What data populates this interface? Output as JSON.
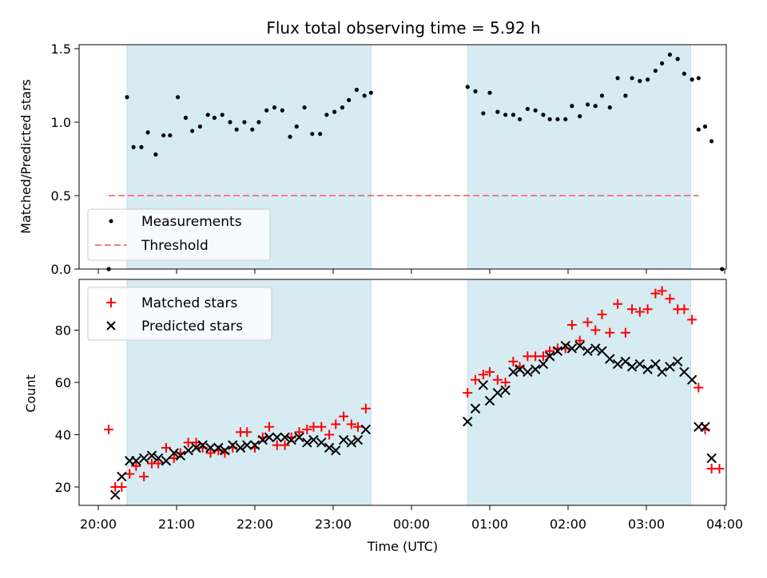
{
  "figure": {
    "title": "Flux total observing time = 5.92 h",
    "xlabel": "Time (UTC)",
    "x_unit_hours_from": "20:00"
  },
  "chart_data": [
    {
      "type": "scatter",
      "ylabel": "Matched/Predicted stars",
      "ylim": [
        0,
        1.55
      ],
      "xlim": [
        "19:45",
        "04:00"
      ],
      "yticks": [
        0.0,
        0.5,
        1.0,
        1.5
      ],
      "ytick_labels": [
        "0.0",
        "0.5",
        "1.0",
        "1.5"
      ],
      "grid": false,
      "legend": "lower-left",
      "shaded_spans": [
        [
          "20:22",
          "23:29"
        ],
        [
          "00:43",
          "03:34"
        ]
      ],
      "threshold": {
        "name": "Threshold",
        "value": 0.5,
        "x_range": [
          "20:08",
          "03:40"
        ],
        "color": "#f08080"
      },
      "series": [
        {
          "name": "Measurements",
          "color": "#000000",
          "x": [
            "20:08",
            "20:22",
            "20:27",
            "20:33",
            "20:38",
            "20:44",
            "20:50",
            "20:55",
            "21:01",
            "21:07",
            "21:12",
            "21:18",
            "21:24",
            "21:29",
            "21:35",
            "21:41",
            "21:46",
            "21:52",
            "21:58",
            "22:03",
            "22:09",
            "22:15",
            "22:21",
            "22:27",
            "22:32",
            "22:38",
            "22:44",
            "22:50",
            "22:55",
            "23:01",
            "23:07",
            "23:12",
            "23:18",
            "23:24",
            "23:29",
            "00:43",
            "00:49",
            "00:55",
            "01:00",
            "01:06",
            "01:12",
            "01:18",
            "01:23",
            "01:29",
            "01:35",
            "01:41",
            "01:46",
            "01:52",
            "01:58",
            "02:03",
            "02:09",
            "02:15",
            "02:21",
            "02:26",
            "02:32",
            "02:38",
            "02:44",
            "02:49",
            "02:55",
            "03:01",
            "03:07",
            "03:12",
            "03:18",
            "03:24",
            "03:29",
            "03:35",
            "03:40"
          ],
          "y": [
            0.0,
            1.17,
            0.83,
            0.83,
            0.93,
            0.78,
            0.91,
            0.91,
            1.17,
            1.03,
            0.94,
            0.97,
            1.05,
            1.03,
            1.05,
            1.0,
            0.95,
            1.0,
            0.95,
            1.0,
            1.08,
            1.1,
            1.08,
            0.9,
            0.97,
            1.1,
            0.92,
            0.92,
            1.05,
            1.07,
            1.1,
            1.15,
            1.22,
            1.18,
            1.2,
            1.24,
            1.21,
            1.06,
            1.2,
            1.07,
            1.05,
            1.05,
            1.02,
            1.09,
            1.08,
            1.05,
            1.02,
            1.02,
            1.02,
            1.11,
            1.04,
            1.12,
            1.11,
            1.18,
            1.1,
            1.3,
            1.18,
            1.3,
            1.28,
            1.29,
            1.35,
            1.4,
            1.46,
            1.43,
            1.33,
            1.29,
            1.3
          ]
        }
      ]
    },
    {
      "type": "scatter",
      "ylabel": "Count",
      "ylim": [
        13,
        98
      ],
      "xlim": [
        "19:45",
        "04:00"
      ],
      "yticks": [
        20,
        40,
        60,
        80
      ],
      "ytick_labels": [
        "20",
        "40",
        "60",
        "80"
      ],
      "xtick_labels": [
        "20:00",
        "21:00",
        "22:00",
        "23:00",
        "00:00",
        "01:00",
        "02:00",
        "03:00",
        "04:00"
      ],
      "grid": false,
      "legend": "top-left",
      "shaded_spans": [
        [
          "20:22",
          "23:29"
        ],
        [
          "00:43",
          "03:34"
        ]
      ],
      "series": [
        {
          "name": "Matched stars",
          "marker": "plus",
          "color": "#ff0000",
          "x": [
            "20:08",
            "20:13",
            "20:18",
            "20:24",
            "20:29",
            "20:35",
            "20:41",
            "20:46",
            "20:52",
            "20:58",
            "21:03",
            "21:09",
            "21:15",
            "21:20",
            "21:26",
            "21:32",
            "21:37",
            "21:43",
            "21:49",
            "21:54",
            "22:00",
            "22:06",
            "22:11",
            "22:17",
            "22:23",
            "22:28",
            "22:34",
            "22:40",
            "22:45",
            "22:51",
            "22:57",
            "23:02",
            "23:08",
            "23:14",
            "23:19",
            "23:25",
            "00:43",
            "00:49",
            "00:55",
            "01:00",
            "01:06",
            "01:12",
            "01:18",
            "01:23",
            "01:29",
            "01:35",
            "01:41",
            "01:46",
            "01:52",
            "01:58",
            "02:03",
            "02:09",
            "02:15",
            "02:21",
            "02:26",
            "02:32",
            "02:38",
            "02:44",
            "02:49",
            "02:55",
            "03:01",
            "03:07",
            "03:12",
            "03:18",
            "03:24",
            "03:29",
            "03:35",
            "03:40"
          ],
          "y": [
            42,
            20,
            20,
            25,
            28,
            24,
            29,
            29,
            35,
            31,
            33,
            37,
            37,
            35,
            33,
            34,
            33,
            35,
            41,
            41,
            35,
            39,
            43,
            36,
            36,
            39,
            41,
            42,
            43,
            43,
            40,
            44,
            47,
            44,
            43,
            50,
            56,
            61,
            63,
            64,
            61,
            60,
            68,
            66,
            70,
            70,
            70,
            72,
            73,
            73,
            82,
            76,
            83,
            80,
            86,
            79,
            90,
            79,
            88,
            87,
            88,
            94,
            95,
            92,
            88,
            88,
            84,
            58
          ]
        },
        {
          "name": "Predicted stars",
          "marker": "x",
          "color": "#000000",
          "x": [
            "20:13",
            "20:18",
            "20:24",
            "20:29",
            "20:35",
            "20:41",
            "20:46",
            "20:52",
            "20:58",
            "21:03",
            "21:09",
            "21:15",
            "21:20",
            "21:26",
            "21:32",
            "21:37",
            "21:43",
            "21:49",
            "21:54",
            "22:00",
            "22:06",
            "22:11",
            "22:17",
            "22:23",
            "22:28",
            "22:34",
            "22:40",
            "22:45",
            "22:51",
            "22:57",
            "23:02",
            "23:08",
            "23:14",
            "23:19",
            "23:25",
            "00:43",
            "00:49",
            "00:55",
            "01:00",
            "01:06",
            "01:12",
            "01:18",
            "01:23",
            "01:29",
            "01:35",
            "01:41",
            "01:46",
            "01:52",
            "01:58",
            "02:03",
            "02:09",
            "02:15",
            "02:21",
            "02:26",
            "02:32",
            "02:38",
            "02:44",
            "02:49",
            "02:55",
            "03:01",
            "03:07",
            "03:12",
            "03:18",
            "03:24",
            "03:29",
            "03:35",
            "03:40"
          ],
          "y": [
            17,
            24,
            30,
            30,
            31,
            32,
            31,
            30,
            33,
            32,
            34,
            35,
            36,
            35,
            35,
            34,
            36,
            35,
            36,
            36,
            38,
            39,
            39,
            39,
            38,
            39,
            37,
            38,
            37,
            35,
            34,
            38,
            37,
            38,
            42,
            45,
            50,
            59,
            53,
            56,
            57,
            64,
            65,
            64,
            65,
            67,
            70,
            72,
            74,
            73,
            74,
            72,
            73,
            72,
            69,
            67,
            68,
            66,
            67,
            65,
            67,
            64,
            66,
            68,
            64,
            61,
            43
          ]
        }
      ],
      "extra_points": {
        "matched_tail": {
          "x": [
            "03:45",
            "03:50",
            "03:56"
          ],
          "y": [
            42,
            27,
            27
          ]
        },
        "predicted_tail": {
          "x": [
            "03:45",
            "03:50"
          ],
          "y": [
            43,
            31
          ]
        }
      }
    }
  ]
}
